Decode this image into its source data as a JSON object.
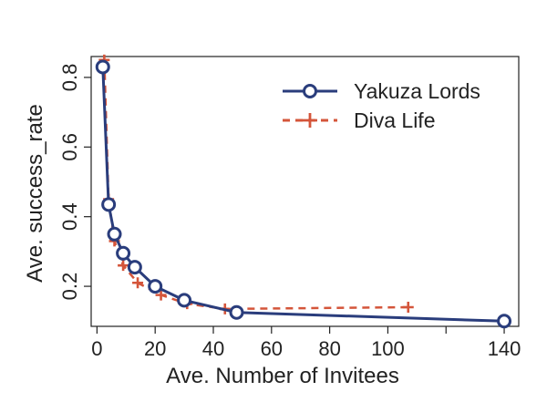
{
  "chart_data": {
    "type": "line",
    "xlabel": "Ave. Number of Invitees",
    "ylabel": "Ave. success_rate",
    "xlim": [
      -2,
      145
    ],
    "ylim": [
      0.085,
      0.86
    ],
    "x_ticks": [
      {
        "value": 0,
        "label": "0"
      },
      {
        "value": 20,
        "label": "20"
      },
      {
        "value": 40,
        "label": "40"
      },
      {
        "value": 60,
        "label": "60"
      },
      {
        "value": 80,
        "label": "80"
      },
      {
        "value": 100,
        "label": "100"
      },
      {
        "value": 120,
        "label": ""
      },
      {
        "value": 140,
        "label": "140"
      }
    ],
    "y_ticks": [
      {
        "value": 0.2,
        "label": "0.2"
      },
      {
        "value": 0.4,
        "label": "0.4"
      },
      {
        "value": 0.6,
        "label": "0.6"
      },
      {
        "value": 0.8,
        "label": "0.8"
      }
    ],
    "grid": false,
    "legend_position": "top-right",
    "series": [
      {
        "name": "Yakuza Lords",
        "color": "#2a3d7c",
        "line_style": "solid",
        "marker": "circle",
        "x": [
          2,
          4,
          6,
          9,
          13,
          20,
          30,
          48,
          140
        ],
        "y": [
          0.83,
          0.435,
          0.35,
          0.295,
          0.255,
          0.2,
          0.16,
          0.125,
          0.1
        ]
      },
      {
        "name": "Diva Life",
        "color": "#d4553a",
        "line_style": "dashed",
        "marker": "plus",
        "x": [
          2.5,
          4,
          6,
          9,
          14,
          22,
          31,
          44,
          107
        ],
        "y": [
          0.85,
          0.45,
          0.33,
          0.26,
          0.21,
          0.175,
          0.15,
          0.135,
          0.14
        ]
      }
    ]
  }
}
